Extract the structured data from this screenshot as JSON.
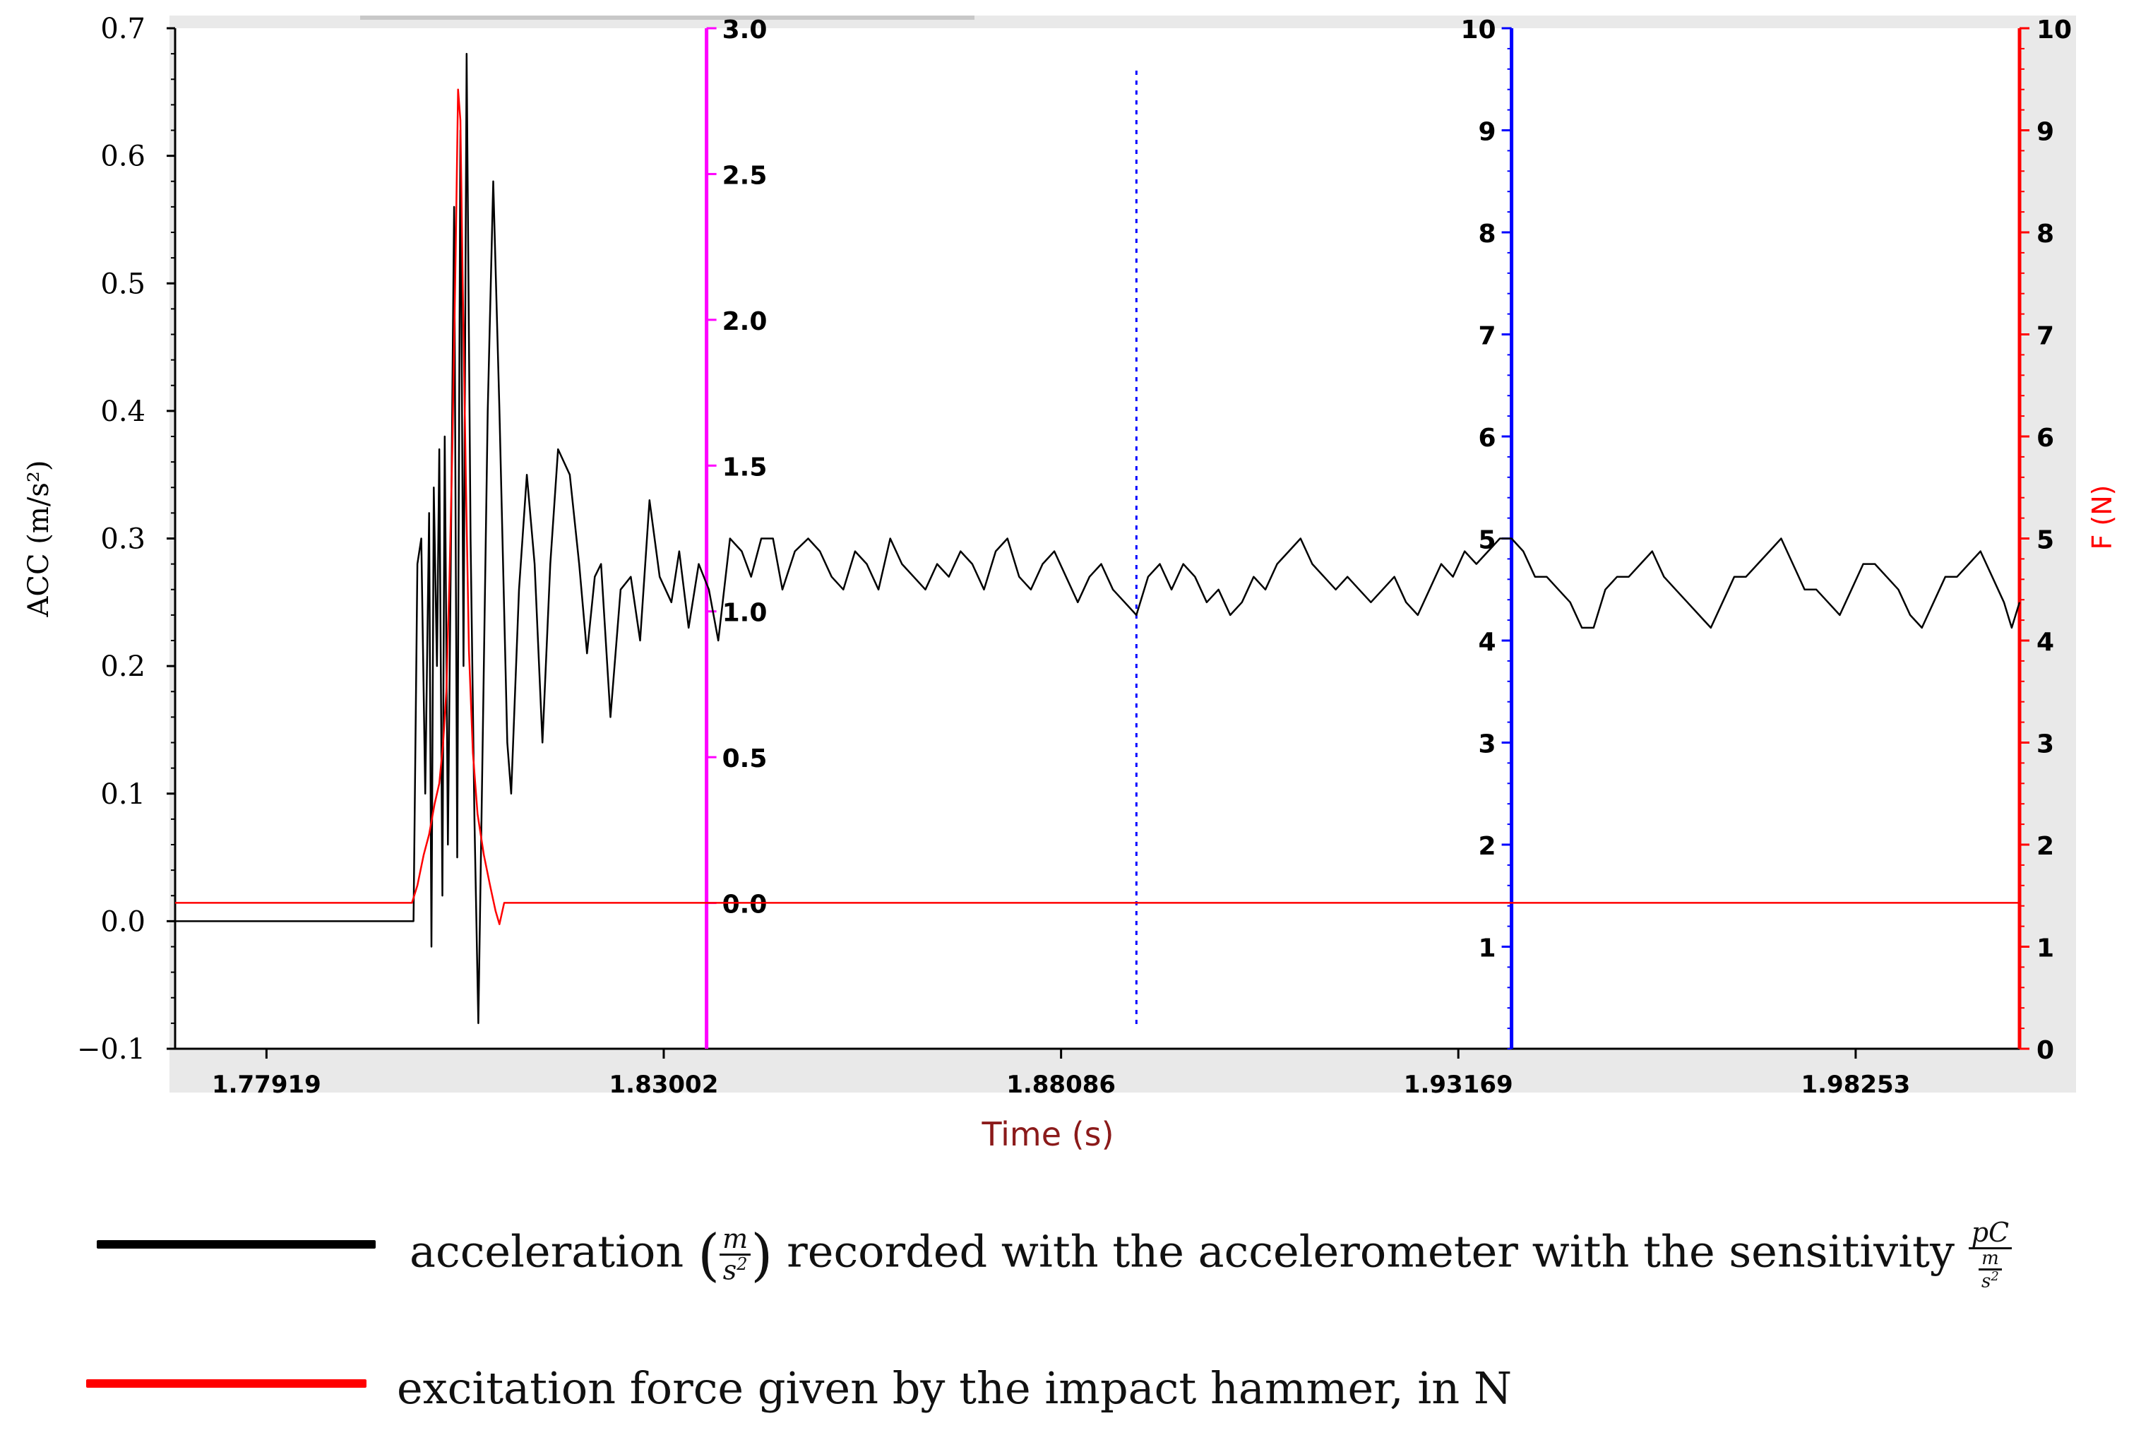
{
  "chart_data": {
    "type": "line",
    "xlabel": "Time  (s)",
    "x_ticks": [
      "1.77919",
      "1.83002",
      "1.88086",
      "1.93169",
      "1.98253"
    ],
    "x_tick_values": [
      1.77919,
      1.83002,
      1.88086,
      1.93169,
      1.98253
    ],
    "xlim": [
      1.7675,
      2.0035
    ],
    "left_axis": {
      "label": "ACC (m/s²)",
      "ylim": [
        -0.1,
        0.7
      ],
      "ticks": [
        "0.7",
        "0.6",
        "0.5",
        "0.4",
        "0.3",
        "0.2",
        "0.1",
        "0.0",
        "−0.1"
      ],
      "tick_values": [
        0.7,
        0.6,
        0.5,
        0.4,
        0.3,
        0.2,
        0.1,
        0.0,
        -0.1
      ]
    },
    "magenta_axis": {
      "ticks": [
        "3.0",
        "2.5",
        "2.0",
        "1.5",
        "1.0",
        "0.5",
        "0.0"
      ],
      "tick_values": [
        3.0,
        2.5,
        2.0,
        1.5,
        1.0,
        0.5,
        0.0
      ],
      "ylim": [
        -0.5,
        3.0
      ],
      "color": "#ff00ff",
      "x": 1.8355
    },
    "blue_axis": {
      "ticks": [
        "10",
        "9",
        "8",
        "7",
        "6",
        "5",
        "4",
        "3",
        "2",
        "1"
      ],
      "tick_values": [
        10,
        9,
        8,
        7,
        6,
        5,
        4,
        3,
        2,
        1
      ],
      "ylim": [
        0,
        10
      ],
      "color": "#0000ff",
      "x": 1.9385
    },
    "right_axis": {
      "label": "F (N)",
      "ticks": [
        "10",
        "9",
        "8",
        "7",
        "6",
        "5",
        "4",
        "3",
        "2",
        "1",
        "0"
      ],
      "tick_values": [
        10,
        9,
        8,
        7,
        6,
        5,
        4,
        3,
        2,
        1,
        0
      ],
      "ylim": [
        0,
        10
      ],
      "color": "#ff0000"
    },
    "dotted_cursor_x": 1.8905,
    "series": [
      {
        "name": "acceleration",
        "color": "#000000",
        "axis": "left",
        "points": [
          [
            1.7675,
            0.0
          ],
          [
            1.798,
            0.0
          ],
          [
            1.7985,
            0.28
          ],
          [
            1.799,
            0.3
          ],
          [
            1.7995,
            0.1
          ],
          [
            1.8,
            0.32
          ],
          [
            1.8003,
            -0.02
          ],
          [
            1.8006,
            0.34
          ],
          [
            1.801,
            0.2
          ],
          [
            1.8013,
            0.37
          ],
          [
            1.8017,
            0.02
          ],
          [
            1.802,
            0.38
          ],
          [
            1.8024,
            0.06
          ],
          [
            1.8028,
            0.3
          ],
          [
            1.8032,
            0.56
          ],
          [
            1.8036,
            0.05
          ],
          [
            1.804,
            0.62
          ],
          [
            1.8044,
            0.2
          ],
          [
            1.8048,
            0.68
          ],
          [
            1.8053,
            0.3
          ],
          [
            1.8058,
            0.08
          ],
          [
            1.8063,
            -0.08
          ],
          [
            1.8068,
            0.12
          ],
          [
            1.8075,
            0.4
          ],
          [
            1.8082,
            0.58
          ],
          [
            1.809,
            0.4
          ],
          [
            1.81,
            0.14
          ],
          [
            1.8105,
            0.1
          ],
          [
            1.8115,
            0.26
          ],
          [
            1.8125,
            0.35
          ],
          [
            1.8135,
            0.28
          ],
          [
            1.8145,
            0.14
          ],
          [
            1.8155,
            0.28
          ],
          [
            1.8165,
            0.37
          ],
          [
            1.818,
            0.35
          ],
          [
            1.8192,
            0.28
          ],
          [
            1.8202,
            0.21
          ],
          [
            1.8212,
            0.27
          ],
          [
            1.822,
            0.28
          ],
          [
            1.8232,
            0.16
          ],
          [
            1.8245,
            0.26
          ],
          [
            1.8258,
            0.27
          ],
          [
            1.827,
            0.22
          ],
          [
            1.8282,
            0.33
          ],
          [
            1.8295,
            0.27
          ],
          [
            1.831,
            0.25
          ],
          [
            1.832,
            0.29
          ],
          [
            1.8332,
            0.23
          ],
          [
            1.8345,
            0.28
          ],
          [
            1.8358,
            0.26
          ],
          [
            1.837,
            0.22
          ],
          [
            1.8385,
            0.3
          ],
          [
            1.84,
            0.29
          ],
          [
            1.8412,
            0.27
          ],
          [
            1.8425,
            0.3
          ],
          [
            1.844,
            0.3
          ],
          [
            1.8452,
            0.26
          ],
          [
            1.8468,
            0.29
          ],
          [
            1.8485,
            0.3
          ],
          [
            1.85,
            0.29
          ],
          [
            1.8515,
            0.27
          ],
          [
            1.853,
            0.26
          ],
          [
            1.8545,
            0.29
          ],
          [
            1.856,
            0.28
          ],
          [
            1.8575,
            0.26
          ],
          [
            1.859,
            0.3
          ],
          [
            1.8605,
            0.28
          ],
          [
            1.862,
            0.27
          ],
          [
            1.8635,
            0.26
          ],
          [
            1.865,
            0.28
          ],
          [
            1.8665,
            0.27
          ],
          [
            1.868,
            0.29
          ],
          [
            1.8695,
            0.28
          ],
          [
            1.871,
            0.26
          ],
          [
            1.8725,
            0.29
          ],
          [
            1.874,
            0.3
          ],
          [
            1.8755,
            0.27
          ],
          [
            1.877,
            0.26
          ],
          [
            1.8785,
            0.28
          ],
          [
            1.88,
            0.29
          ],
          [
            1.8815,
            0.27
          ],
          [
            1.883,
            0.25
          ],
          [
            1.8845,
            0.27
          ],
          [
            1.886,
            0.28
          ],
          [
            1.8875,
            0.26
          ],
          [
            1.889,
            0.25
          ],
          [
            1.8905,
            0.24
          ],
          [
            1.892,
            0.27
          ],
          [
            1.8935,
            0.28
          ],
          [
            1.895,
            0.26
          ],
          [
            1.8965,
            0.28
          ],
          [
            1.898,
            0.27
          ],
          [
            1.8995,
            0.25
          ],
          [
            1.901,
            0.26
          ],
          [
            1.9025,
            0.24
          ],
          [
            1.904,
            0.25
          ],
          [
            1.9055,
            0.27
          ],
          [
            1.907,
            0.26
          ],
          [
            1.9085,
            0.28
          ],
          [
            1.91,
            0.29
          ],
          [
            1.9115,
            0.3
          ],
          [
            1.913,
            0.28
          ],
          [
            1.9145,
            0.27
          ],
          [
            1.916,
            0.26
          ],
          [
            1.9175,
            0.27
          ],
          [
            1.919,
            0.26
          ],
          [
            1.9205,
            0.25
          ],
          [
            1.922,
            0.26
          ],
          [
            1.9235,
            0.27
          ],
          [
            1.925,
            0.25
          ],
          [
            1.9265,
            0.24
          ],
          [
            1.928,
            0.26
          ],
          [
            1.9295,
            0.28
          ],
          [
            1.931,
            0.27
          ],
          [
            1.9325,
            0.29
          ],
          [
            1.934,
            0.28
          ],
          [
            1.9355,
            0.29
          ],
          [
            1.937,
            0.3
          ],
          [
            1.9385,
            0.3
          ],
          [
            1.94,
            0.29
          ],
          [
            1.9415,
            0.27
          ],
          [
            1.943,
            0.27
          ],
          [
            1.9445,
            0.26
          ],
          [
            1.946,
            0.25
          ],
          [
            1.9475,
            0.23
          ],
          [
            1.949,
            0.23
          ],
          [
            1.9505,
            0.26
          ],
          [
            1.952,
            0.27
          ],
          [
            1.9535,
            0.27
          ],
          [
            1.955,
            0.28
          ],
          [
            1.9565,
            0.29
          ],
          [
            1.958,
            0.27
          ],
          [
            1.9595,
            0.26
          ],
          [
            1.961,
            0.25
          ],
          [
            1.9625,
            0.24
          ],
          [
            1.964,
            0.23
          ],
          [
            1.9655,
            0.25
          ],
          [
            1.967,
            0.27
          ],
          [
            1.9685,
            0.27
          ],
          [
            1.97,
            0.28
          ],
          [
            1.9715,
            0.29
          ],
          [
            1.973,
            0.3
          ],
          [
            1.9745,
            0.28
          ],
          [
            1.976,
            0.26
          ],
          [
            1.9775,
            0.26
          ],
          [
            1.979,
            0.25
          ],
          [
            1.9805,
            0.24
          ],
          [
            1.982,
            0.26
          ],
          [
            1.9835,
            0.28
          ],
          [
            1.985,
            0.28
          ],
          [
            1.9865,
            0.27
          ],
          [
            1.988,
            0.26
          ],
          [
            1.9895,
            0.24
          ],
          [
            1.991,
            0.23
          ],
          [
            1.9925,
            0.25
          ],
          [
            1.994,
            0.27
          ],
          [
            1.9955,
            0.27
          ],
          [
            1.997,
            0.28
          ],
          [
            1.9985,
            0.29
          ],
          [
            2.0,
            0.27
          ],
          [
            2.0015,
            0.25
          ],
          [
            2.0025,
            0.23
          ],
          [
            2.0035,
            0.25
          ]
        ]
      },
      {
        "name": "excitation force",
        "color": "#ff0000",
        "axis": "right",
        "points": [
          [
            1.7675,
            1.43
          ],
          [
            1.7978,
            1.43
          ],
          [
            1.7985,
            1.6
          ],
          [
            1.7993,
            1.9
          ],
          [
            1.8,
            2.1
          ],
          [
            1.8007,
            2.4
          ],
          [
            1.8013,
            2.6
          ],
          [
            1.8018,
            3.0
          ],
          [
            1.8022,
            3.5
          ],
          [
            1.8026,
            4.6
          ],
          [
            1.803,
            6.0
          ],
          [
            1.8034,
            7.8
          ],
          [
            1.8037,
            9.4
          ],
          [
            1.804,
            9.1
          ],
          [
            1.8043,
            7.5
          ],
          [
            1.8047,
            5.6
          ],
          [
            1.8051,
            3.9
          ],
          [
            1.8056,
            2.9
          ],
          [
            1.8062,
            2.3
          ],
          [
            1.807,
            1.9
          ],
          [
            1.8078,
            1.6
          ],
          [
            1.8085,
            1.35
          ],
          [
            1.809,
            1.22
          ],
          [
            1.8096,
            1.43
          ],
          [
            2.0035,
            1.43
          ]
        ]
      }
    ]
  },
  "legend": {
    "acceleration": {
      "text_before": "acceleration ",
      "unit_num": "m",
      "unit_den": "s",
      "unit_exp": "2",
      "text_after": " recorded with the accelerometer with the sensitivity ",
      "sens_num": "pC",
      "sens_den_num": "m",
      "sens_den_den": "s",
      "sens_den_exp": "2",
      "color": "#000000"
    },
    "force": {
      "text": "excitation force given by the impact hammer, in N",
      "color": "#ff0000"
    }
  }
}
